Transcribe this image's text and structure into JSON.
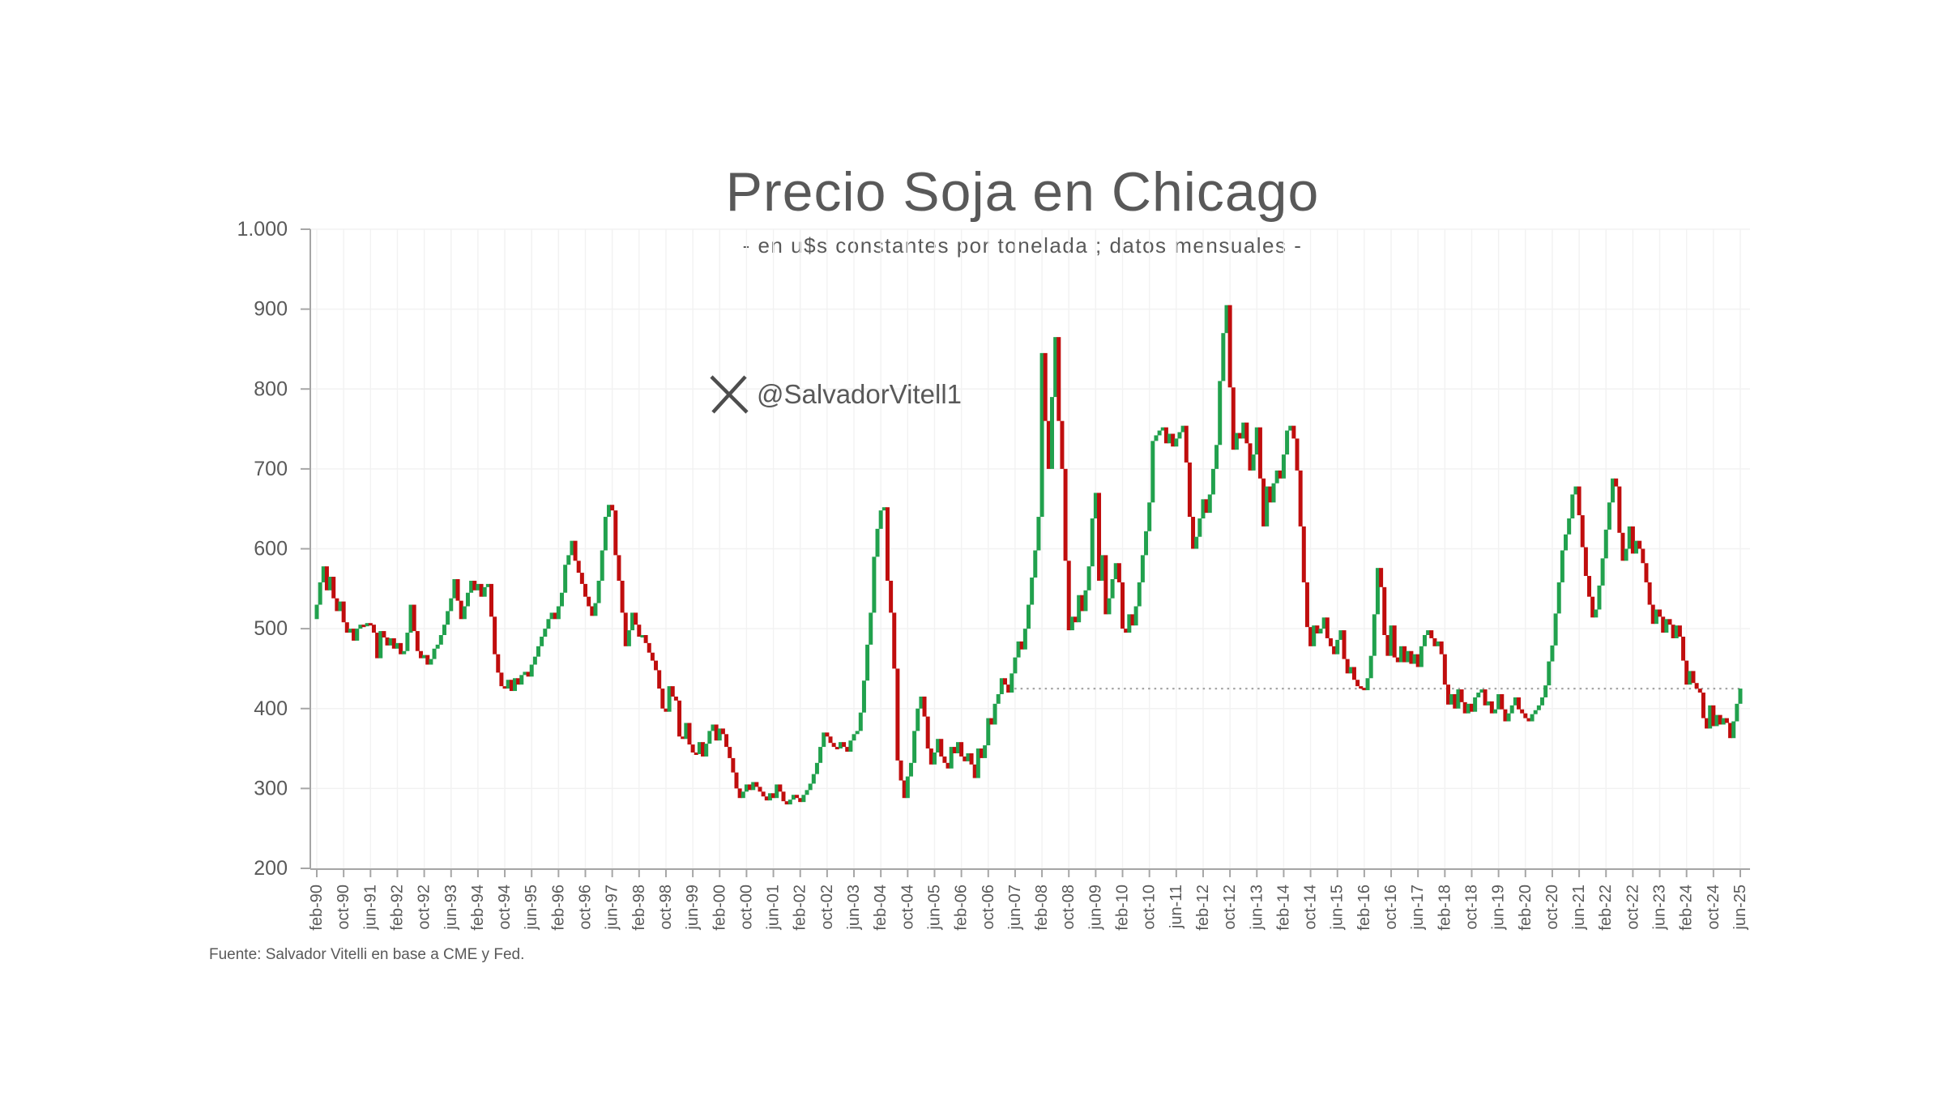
{
  "title": "Precio Soja en Chicago",
  "subtitle": "- en u$s constantes por tonelada ; datos mensuales -",
  "watermark": "@SalvadorVitell1",
  "source": "Fuente: Salvador Vitelli en base a CME y Fed.",
  "chart_data": {
    "type": "bar",
    "subtype": "monthly-close-step-candles",
    "title": "Precio Soja en Chicago",
    "ylabel": "u$s constantes por tonelada",
    "xlabel": "",
    "ylim": [
      200,
      1000
    ],
    "ytick_values": [
      1000,
      900,
      800,
      700,
      600,
      500,
      400,
      300,
      200
    ],
    "ytick_labels": [
      "1.000",
      "900",
      "800",
      "700",
      "600",
      "500",
      "400",
      "300",
      "200"
    ],
    "x_start": "feb-90",
    "x_end": "jun-25",
    "xtick_every_months": 8,
    "xtick_labels": [
      "feb-90",
      "oct-90",
      "jun-91",
      "feb-92",
      "oct-92",
      "jun-93",
      "feb-94",
      "oct-94",
      "jun-95",
      "feb-96",
      "oct-96",
      "jun-97",
      "feb-98",
      "oct-98",
      "jun-99",
      "feb-00",
      "oct-00",
      "jun-01",
      "feb-02",
      "oct-02",
      "jun-03",
      "feb-04",
      "oct-04",
      "jun-05",
      "feb-06",
      "oct-06",
      "jun-07",
      "feb-08",
      "oct-08",
      "jun-09",
      "feb-10",
      "oct-10",
      "jun-11",
      "feb-12",
      "oct-12",
      "jun-13",
      "feb-14",
      "oct-14",
      "jun-15",
      "feb-16",
      "oct-16",
      "jun-17",
      "feb-18",
      "oct-18",
      "jun-19",
      "feb-20",
      "oct-20",
      "jun-21",
      "feb-22",
      "oct-22",
      "jun-23",
      "feb-24",
      "oct-24",
      "jun-25"
    ],
    "first_open": 512,
    "series": [
      {
        "year": 1990,
        "start": "feb",
        "closes": [
          530,
          558,
          578,
          548,
          565,
          538,
          522,
          534,
          508,
          495,
          500
        ]
      },
      {
        "year": 1991,
        "closes": [
          485,
          500,
          505,
          503,
          507,
          505,
          495,
          463,
          497,
          489,
          479,
          488
        ]
      },
      {
        "year": 1992,
        "closes": [
          475,
          482,
          468,
          472,
          495,
          530,
          497,
          472,
          463,
          467,
          455,
          462
        ]
      },
      {
        "year": 1993,
        "closes": [
          475,
          480,
          492,
          505,
          522,
          538,
          562,
          535,
          512,
          528,
          545,
          560
        ]
      },
      {
        "year": 1994,
        "closes": [
          548,
          556,
          540,
          552,
          556,
          515,
          468,
          445,
          428,
          425,
          436,
          422
        ]
      },
      {
        "year": 1995,
        "closes": [
          438,
          430,
          442,
          446,
          440,
          455,
          465,
          478,
          490,
          500,
          512,
          520
        ]
      },
      {
        "year": 1996,
        "closes": [
          512,
          528,
          545,
          580,
          592,
          610,
          585,
          570,
          556,
          540,
          528,
          516
        ]
      },
      {
        "year": 1997,
        "closes": [
          532,
          560,
          598,
          640,
          655,
          648,
          592,
          560,
          520,
          478,
          498,
          520
        ]
      },
      {
        "year": 1998,
        "closes": [
          505,
          490,
          492,
          482,
          470,
          460,
          448,
          425,
          400,
          396,
          428,
          415
        ]
      },
      {
        "year": 1999,
        "closes": [
          410,
          365,
          362,
          382,
          355,
          345,
          343,
          358,
          340,
          356,
          372,
          380
        ]
      },
      {
        "year": 2000,
        "closes": [
          360,
          375,
          368,
          352,
          338,
          320,
          300,
          288,
          296,
          305,
          298,
          308
        ]
      },
      {
        "year": 2001,
        "closes": [
          302,
          296,
          290,
          285,
          294,
          288,
          305,
          296,
          284,
          280,
          286,
          292
        ]
      },
      {
        "year": 2002,
        "closes": [
          288,
          283,
          292,
          298,
          306,
          318,
          332,
          352,
          370,
          365,
          357,
          352
        ]
      },
      {
        "year": 2003,
        "closes": [
          350,
          358,
          352,
          346,
          360,
          368,
          372,
          395,
          435,
          480,
          520,
          590
        ]
      },
      {
        "year": 2004,
        "closes": [
          625,
          648,
          652,
          560,
          520,
          450,
          335,
          310,
          288,
          315,
          332,
          372
        ]
      },
      {
        "year": 2005,
        "closes": [
          400,
          415,
          390,
          350,
          330,
          345,
          362,
          340,
          332,
          325,
          352,
          344
        ]
      },
      {
        "year": 2006,
        "closes": [
          358,
          340,
          334,
          344,
          330,
          313,
          350,
          338,
          354,
          388,
          380,
          406
        ]
      },
      {
        "year": 2007,
        "closes": [
          418,
          438,
          430,
          420,
          444,
          464,
          484,
          474,
          500,
          530,
          564,
          598
        ]
      },
      {
        "year": 2008,
        "closes": [
          640,
          845,
          760,
          700,
          790,
          865,
          760,
          700,
          585,
          498,
          515,
          508
        ]
      },
      {
        "year": 2009,
        "closes": [
          542,
          522,
          548,
          578,
          638,
          670,
          560,
          592,
          518,
          538,
          562,
          582
        ]
      },
      {
        "year": 2010,
        "closes": [
          558,
          500,
          495,
          518,
          504,
          528,
          558,
          592,
          622,
          658,
          735,
          742
        ]
      },
      {
        "year": 2011,
        "closes": [
          748,
          752,
          732,
          744,
          728,
          738,
          746,
          754,
          708,
          640,
          600,
          615
        ]
      },
      {
        "year": 2012,
        "closes": [
          638,
          662,
          645,
          668,
          700,
          730,
          810,
          870,
          905,
          802,
          724,
          745
        ]
      },
      {
        "year": 2013,
        "closes": [
          738,
          758,
          732,
          698,
          718,
          752,
          688,
          628,
          678,
          658,
          682,
          698
        ]
      },
      {
        "year": 2014,
        "closes": [
          688,
          718,
          748,
          754,
          738,
          698,
          628,
          558,
          502,
          478,
          504,
          494
        ]
      },
      {
        "year": 2015,
        "closes": [
          500,
          514,
          488,
          478,
          468,
          486,
          498,
          462,
          444,
          452,
          436,
          428
        ]
      },
      {
        "year": 2016,
        "closes": [
          426,
          423,
          438,
          466,
          518,
          576,
          552,
          492,
          466,
          504,
          464,
          458
        ]
      },
      {
        "year": 2017,
        "closes": [
          478,
          458,
          472,
          456,
          468,
          452,
          478,
          492,
          498,
          488,
          478,
          484
        ]
      },
      {
        "year": 2018,
        "closes": [
          468,
          430,
          405,
          418,
          400,
          424,
          408,
          394,
          406,
          396,
          414,
          420
        ]
      },
      {
        "year": 2019,
        "closes": [
          424,
          404,
          409,
          394,
          399,
          418,
          399,
          384,
          394,
          404,
          414,
          399
        ]
      },
      {
        "year": 2020,
        "closes": [
          394,
          388,
          384,
          393,
          398,
          404,
          414,
          429,
          459,
          479,
          519,
          558
        ]
      },
      {
        "year": 2021,
        "closes": [
          598,
          618,
          638,
          668,
          678,
          642,
          602,
          566,
          540,
          514,
          524,
          554
        ]
      },
      {
        "year": 2022,
        "closes": [
          588,
          624,
          658,
          688,
          678,
          620,
          585,
          600,
          628,
          594,
          610,
          600
        ]
      },
      {
        "year": 2023,
        "closes": [
          582,
          558,
          530,
          506,
          524,
          515,
          495,
          512,
          505,
          488,
          504,
          490
        ]
      },
      {
        "year": 2024,
        "closes": [
          460,
          430,
          447,
          432,
          425,
          420,
          388,
          375,
          404,
          378,
          392,
          380
        ]
      },
      {
        "year": 2025,
        "closes": [
          388,
          382,
          363,
          384,
          406,
          425
        ]
      }
    ],
    "reference_line": {
      "value": 425,
      "start_month_index": 206,
      "style": "dotted",
      "note": "level of apr-07 extended to jun-25"
    },
    "legend": "none",
    "grid": "faint horizontal and vertical at ticks",
    "colors": {
      "up": "#21A14D",
      "down": "#C00D0D",
      "axis": "#A6A6A6",
      "text": "#595959",
      "grid": "#F2F2F2",
      "reference": "#A6A6A6"
    }
  }
}
